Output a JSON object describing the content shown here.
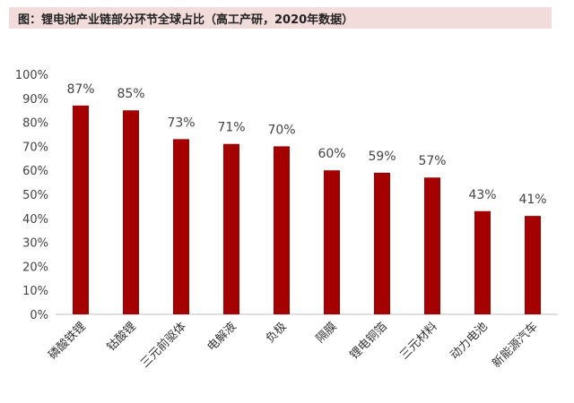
{
  "chart_data": {
    "type": "bar",
    "title": "图：锂电池产业链部分环节全球占比（高工产研，2020年数据）",
    "categories": [
      "磷酸铁锂",
      "钴酸锂",
      "三元前驱体",
      "电解液",
      "负极",
      "隔膜",
      "锂电铜箔",
      "三元材料",
      "动力电池",
      "新能源汽车"
    ],
    "values": [
      87,
      85,
      73,
      71,
      70,
      60,
      59,
      57,
      43,
      41
    ],
    "value_labels": [
      "87%",
      "85%",
      "73%",
      "71%",
      "70%",
      "60%",
      "59%",
      "57%",
      "43%",
      "41%"
    ],
    "ylim": [
      0,
      100
    ],
    "y_ticks": [
      "0%",
      "10%",
      "20%",
      "30%",
      "40%",
      "50%",
      "60%",
      "70%",
      "80%",
      "90%",
      "100%"
    ],
    "xlabel": "",
    "ylabel": "",
    "grid": false,
    "legend": "none",
    "bar_color": "#a50000"
  }
}
